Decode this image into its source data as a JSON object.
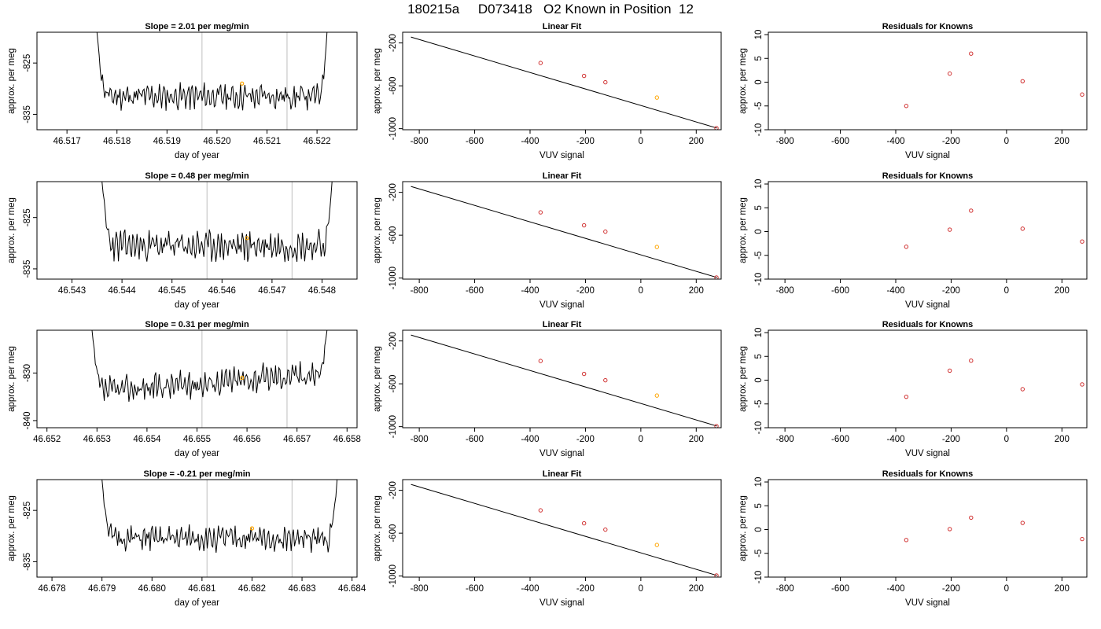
{
  "page_title": "180215a     D073418   O2 Known in Position  12",
  "colors": {
    "trace": "#000000",
    "vline": "#bebebe",
    "known_marker": "#ffa500",
    "residual_marker": "#d03030",
    "frame": "#000000"
  },
  "chart_data": [
    {
      "type": "line",
      "row": 0,
      "col": 0,
      "title": "Slope =  2.01  per meg/min",
      "xlabel": "day of year",
      "ylabel": "approx. per meg",
      "xlim": [
        46.5164,
        46.5228
      ],
      "ylim": [
        -838,
        -819
      ],
      "xticks": [
        46.517,
        46.518,
        46.519,
        46.52,
        46.521,
        46.522
      ],
      "xtick_labels": [
        "46.517",
        "46.518",
        "46.519",
        "46.520",
        "46.521",
        "46.522"
      ],
      "yticks": [
        -825,
        -835
      ],
      "ytick_labels": [
        "-825",
        "-835"
      ],
      "vlines": [
        46.5197,
        46.5214
      ],
      "trace": {
        "x_start": 46.5176,
        "x_end": 46.5222,
        "baseline": -831.5,
        "amplitude": 2.2,
        "seed": 11,
        "left_top": -819,
        "right_top": -819
      },
      "marker": {
        "x": 46.5205,
        "y": -829
      }
    },
    {
      "type": "scatter",
      "row": 0,
      "col": 1,
      "title": "Linear Fit",
      "xlabel": "VUV signal",
      "ylabel": "approx. per meg",
      "xlim": [
        -860,
        290
      ],
      "ylim": [
        -1010,
        -100
      ],
      "xticks": [
        -800,
        -600,
        -400,
        -200,
        0,
        200
      ],
      "xtick_labels": [
        "-800",
        "-600",
        "-400",
        "-200",
        "0",
        "200"
      ],
      "yticks": [
        -200,
        -600,
        -1000
      ],
      "ytick_labels": [
        "-200",
        "-600",
        "-1000"
      ],
      "fit_line": {
        "x": [
          -830,
          275
        ],
        "y": [
          -145,
          -995
        ]
      },
      "points": {
        "x": [
          -362,
          -205,
          -128,
          58,
          273
        ],
        "y": [
          -387,
          -508,
          -567,
          -710,
          -995
        ]
      },
      "highlight_index": 3
    },
    {
      "type": "scatter",
      "row": 0,
      "col": 2,
      "title": "Residuals for Knowns",
      "xlabel": "VUV signal",
      "ylabel": "approx. per meg",
      "xlim": [
        -860,
        290
      ],
      "ylim": [
        -10,
        10.5
      ],
      "xticks": [
        -800,
        -600,
        -400,
        -200,
        0,
        200
      ],
      "xtick_labels": [
        "-800",
        "-600",
        "-400",
        "-200",
        "0",
        "200"
      ],
      "yticks": [
        10,
        5,
        0,
        -5,
        -10
      ],
      "ytick_labels": [
        "10",
        "5",
        "0",
        "-5",
        "-10"
      ],
      "points": {
        "x": [
          -362,
          -205,
          -128,
          58,
          273
        ],
        "y": [
          -5.0,
          1.8,
          6.0,
          0.2,
          -2.6
        ]
      }
    },
    {
      "type": "line",
      "row": 1,
      "col": 0,
      "title": "Slope =  0.48  per meg/min",
      "xlabel": "day of year",
      "ylabel": "approx. per meg",
      "xlim": [
        46.5423,
        46.5487
      ],
      "ylim": [
        -837,
        -818
      ],
      "xticks": [
        46.543,
        46.544,
        46.545,
        46.546,
        46.547,
        46.548
      ],
      "xtick_labels": [
        "46.543",
        "46.544",
        "46.545",
        "46.546",
        "46.547",
        "46.548"
      ],
      "yticks": [
        -825,
        -835
      ],
      "ytick_labels": [
        "-825",
        "-835"
      ],
      "vlines": [
        46.5457,
        46.5474
      ],
      "trace": {
        "x_start": 46.5436,
        "x_end": 46.5482,
        "baseline": -830.5,
        "amplitude": 2.6,
        "seed": 23,
        "left_top": -818,
        "right_top": -818
      },
      "marker": {
        "x": 46.5465,
        "y": -829
      }
    },
    {
      "type": "scatter",
      "row": 1,
      "col": 1,
      "title": "Linear Fit",
      "xlabel": "VUV signal",
      "ylabel": "approx. per meg",
      "xlim": [
        -860,
        290
      ],
      "ylim": [
        -1010,
        -100
      ],
      "xticks": [
        -800,
        -600,
        -400,
        -200,
        0,
        200
      ],
      "xtick_labels": [
        "-800",
        "-600",
        "-400",
        "-200",
        "0",
        "200"
      ],
      "yticks": [
        -200,
        -600,
        -1000
      ],
      "ytick_labels": [
        "-200",
        "-600",
        "-1000"
      ],
      "fit_line": {
        "x": [
          -830,
          275
        ],
        "y": [
          -145,
          -995
        ]
      },
      "points": {
        "x": [
          -362,
          -205,
          -128,
          58,
          273
        ],
        "y": [
          -387,
          -508,
          -567,
          -710,
          -995
        ]
      },
      "highlight_index": 3
    },
    {
      "type": "scatter",
      "row": 1,
      "col": 2,
      "title": "Residuals for Knowns",
      "xlabel": "VUV signal",
      "ylabel": "approx. per meg",
      "xlim": [
        -860,
        290
      ],
      "ylim": [
        -10,
        10.5
      ],
      "xticks": [
        -800,
        -600,
        -400,
        -200,
        0,
        200
      ],
      "xtick_labels": [
        "-800",
        "-600",
        "-400",
        "-200",
        "0",
        "200"
      ],
      "yticks": [
        10,
        5,
        0,
        -5,
        -10
      ],
      "ytick_labels": [
        "10",
        "5",
        "0",
        "-5",
        "-10"
      ],
      "points": {
        "x": [
          -362,
          -205,
          -128,
          58,
          273
        ],
        "y": [
          -3.2,
          0.4,
          4.4,
          0.6,
          -2.1
        ]
      }
    },
    {
      "type": "line",
      "row": 2,
      "col": 0,
      "title": "Slope =  0.31  per meg/min",
      "xlabel": "day of year",
      "ylabel": "approx. per meg",
      "xlim": [
        46.6518,
        46.6582
      ],
      "ylim": [
        -841.5,
        -821
      ],
      "xticks": [
        46.652,
        46.653,
        46.654,
        46.655,
        46.656,
        46.657,
        46.658
      ],
      "xtick_labels": [
        "46.652",
        "46.653",
        "46.654",
        "46.655",
        "46.656",
        "46.657",
        "46.658"
      ],
      "yticks": [
        -830,
        -840
      ],
      "ytick_labels": [
        "-830",
        "-840"
      ],
      "vlines": [
        46.6551,
        46.6568
      ],
      "trace": {
        "x_start": 46.6529,
        "x_end": 46.6576,
        "baseline": -834,
        "amplitude": 2.5,
        "seed": 37,
        "left_top": -821,
        "right_top": -821,
        "trend": 4
      },
      "marker": {
        "x": 46.6559,
        "y": -831
      }
    },
    {
      "type": "scatter",
      "row": 2,
      "col": 1,
      "title": "Linear Fit",
      "xlabel": "VUV signal",
      "ylabel": "approx. per meg",
      "xlim": [
        -860,
        290
      ],
      "ylim": [
        -1010,
        -100
      ],
      "xticks": [
        -800,
        -600,
        -400,
        -200,
        0,
        200
      ],
      "xtick_labels": [
        "-800",
        "-600",
        "-400",
        "-200",
        "0",
        "200"
      ],
      "yticks": [
        -200,
        -600,
        -1000
      ],
      "ytick_labels": [
        "-200",
        "-600",
        "-1000"
      ],
      "fit_line": {
        "x": [
          -830,
          275
        ],
        "y": [
          -145,
          -995
        ]
      },
      "points": {
        "x": [
          -362,
          -205,
          -128,
          58,
          273
        ],
        "y": [
          -387,
          -508,
          -567,
          -710,
          -995
        ]
      },
      "highlight_index": 3
    },
    {
      "type": "scatter",
      "row": 2,
      "col": 2,
      "title": "Residuals for Knowns",
      "xlabel": "VUV signal",
      "ylabel": "approx. per meg",
      "xlim": [
        -860,
        290
      ],
      "ylim": [
        -10,
        10.5
      ],
      "xticks": [
        -800,
        -600,
        -400,
        -200,
        0,
        200
      ],
      "xtick_labels": [
        "-800",
        "-600",
        "-400",
        "-200",
        "0",
        "200"
      ],
      "yticks": [
        10,
        5,
        0,
        -5,
        -10
      ],
      "ytick_labels": [
        "10",
        "5",
        "0",
        "-5",
        "-10"
      ],
      "points": {
        "x": [
          -362,
          -205,
          -128,
          58,
          273
        ],
        "y": [
          -3.5,
          2.0,
          4.1,
          -1.9,
          -0.9
        ]
      }
    },
    {
      "type": "line",
      "row": 3,
      "col": 0,
      "title": "Slope =  -0.21  per meg/min",
      "xlabel": "day of year",
      "ylabel": "approx. per meg",
      "xlim": [
        46.6777,
        46.6841
      ],
      "ylim": [
        -838,
        -819
      ],
      "xticks": [
        46.678,
        46.679,
        46.68,
        46.681,
        46.682,
        46.683,
        46.684
      ],
      "xtick_labels": [
        "46.678",
        "46.679",
        "46.680",
        "46.681",
        "46.682",
        "46.683",
        "46.684"
      ],
      "yticks": [
        -825,
        -835
      ],
      "ytick_labels": [
        "-825",
        "-835"
      ],
      "vlines": [
        46.6811,
        46.6828
      ],
      "trace": {
        "x_start": 46.679,
        "x_end": 46.6837,
        "baseline": -830.5,
        "amplitude": 2.1,
        "seed": 51,
        "left_top": -819,
        "right_top": -819
      },
      "marker": {
        "x": 46.682,
        "y": -828.5
      }
    },
    {
      "type": "scatter",
      "row": 3,
      "col": 1,
      "title": "Linear Fit",
      "xlabel": "VUV signal",
      "ylabel": "approx. per meg",
      "xlim": [
        -860,
        290
      ],
      "ylim": [
        -1010,
        -100
      ],
      "xticks": [
        -800,
        -600,
        -400,
        -200,
        0,
        200
      ],
      "xtick_labels": [
        "-800",
        "-600",
        "-400",
        "-200",
        "0",
        "200"
      ],
      "yticks": [
        -200,
        -600,
        -1000
      ],
      "ytick_labels": [
        "-200",
        "-600",
        "-1000"
      ],
      "fit_line": {
        "x": [
          -830,
          275
        ],
        "y": [
          -145,
          -995
        ]
      },
      "points": {
        "x": [
          -362,
          -205,
          -128,
          58,
          273
        ],
        "y": [
          -387,
          -508,
          -567,
          -710,
          -995
        ]
      },
      "highlight_index": 3
    },
    {
      "type": "scatter",
      "row": 3,
      "col": 2,
      "title": "Residuals for Knowns",
      "xlabel": "VUV signal",
      "ylabel": "approx. per meg",
      "xlim": [
        -860,
        290
      ],
      "ylim": [
        -10,
        10.5
      ],
      "xticks": [
        -800,
        -600,
        -400,
        -200,
        0,
        200
      ],
      "xtick_labels": [
        "-800",
        "-600",
        "-400",
        "-200",
        "0",
        "200"
      ],
      "yticks": [
        10,
        5,
        0,
        -5,
        -10
      ],
      "ytick_labels": [
        "10",
        "5",
        "0",
        "-5",
        "-10"
      ],
      "points": {
        "x": [
          -362,
          -205,
          -128,
          58,
          273
        ],
        "y": [
          -2.2,
          0.1,
          2.5,
          1.4,
          -2.0
        ]
      }
    }
  ]
}
